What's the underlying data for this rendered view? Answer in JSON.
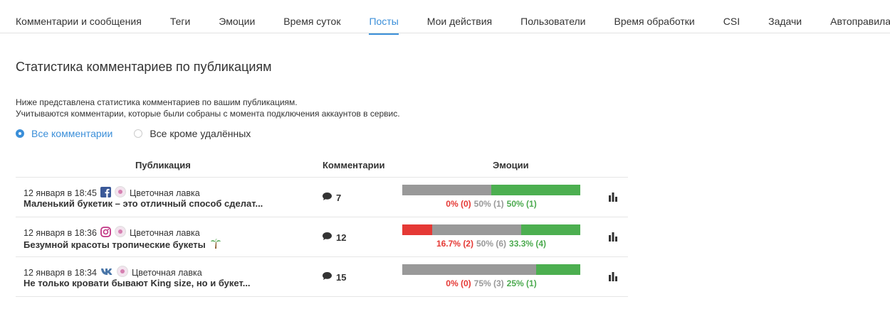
{
  "tabs": [
    "Комментарии и сообщения",
    "Теги",
    "Эмоции",
    "Время суток",
    "Посты",
    "Мои действия",
    "Пользователи",
    "Время обработки",
    "CSI",
    "Задачи",
    "Автоправила"
  ],
  "section": {
    "title": "Статистика комментариев по публикациям",
    "description": [
      "Ниже представлена статистика комментариев по вашим публикациям.",
      "Учитываются комментарии, которые были собраны с момента подключения аккаунтов в сервис."
    ],
    "options": [
      "Все комментарии",
      "Все кроме удалённых"
    ]
  },
  "table": {
    "headers": [
      "Публикация",
      "Комментарии",
      "Эмоции"
    ],
    "rows": [
      {
        "date": "12 января в 18:45",
        "source": "Цветочная лавка",
        "title": "Маленький букетик – это отличный способ сделат...",
        "comments": 7,
        "emotions": [
          {
            "value": 0,
            "label": "0% (0)"
          },
          {
            "value": 50,
            "label": "50% (1)"
          },
          {
            "value": 50,
            "label": "50% (1)"
          }
        ]
      },
      {
        "date": "12 января в 18:36",
        "source": "Цветочная лавка",
        "title": "Безумной красоты тропические букеты",
        "comments": 12,
        "emotions": [
          {
            "value": 16.7,
            "label": "16.7% (2)"
          },
          {
            "value": 50,
            "label": "50% (6)"
          },
          {
            "value": 33.3,
            "label": "33.3% (4)"
          }
        ]
      },
      {
        "date": "12 января в 18:34",
        "source": "Цветочная лавка",
        "title": "Не только кровати бывают King size, но и букет...",
        "comments": 15,
        "emotions": [
          {
            "value": 0,
            "label": "0% (0)"
          },
          {
            "value": 75,
            "label": "75% (3)"
          },
          {
            "value": 25,
            "label": "25% (1)"
          }
        ]
      }
    ]
  }
}
